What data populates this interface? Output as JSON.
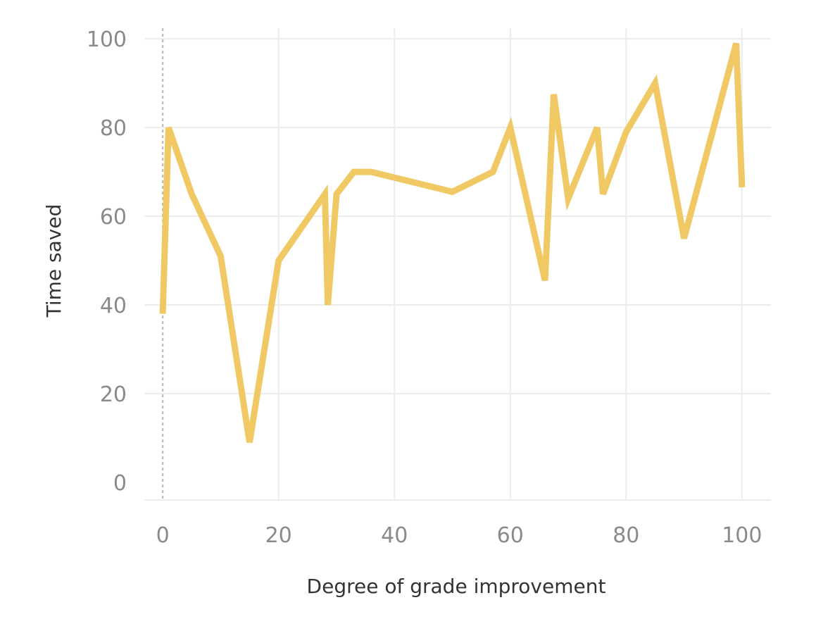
{
  "chart_data": {
    "type": "line",
    "title": "",
    "xlabel": "Degree of grade improvement",
    "ylabel": "Time saved",
    "xlim": [
      -5,
      105
    ],
    "ylim": [
      -4,
      104
    ],
    "x_ticks": [
      0,
      20,
      40,
      60,
      80,
      100
    ],
    "y_ticks": [
      0,
      20,
      40,
      60,
      80,
      100
    ],
    "grid": true,
    "legend": "none",
    "series": [
      {
        "color": "#f0c965",
        "x": [
          0,
          1,
          5,
          10,
          15,
          20,
          28,
          28.5,
          30,
          33,
          36,
          50,
          57,
          60,
          66,
          67.5,
          70,
          75,
          76,
          80,
          85,
          90,
          99,
          100
        ],
        "y": [
          38,
          80,
          65,
          51,
          9,
          50,
          65,
          40,
          65,
          70,
          70,
          65.5,
          70,
          80,
          45.5,
          87.5,
          64,
          80,
          65,
          79,
          90,
          55,
          99,
          66.5
        ]
      }
    ]
  }
}
